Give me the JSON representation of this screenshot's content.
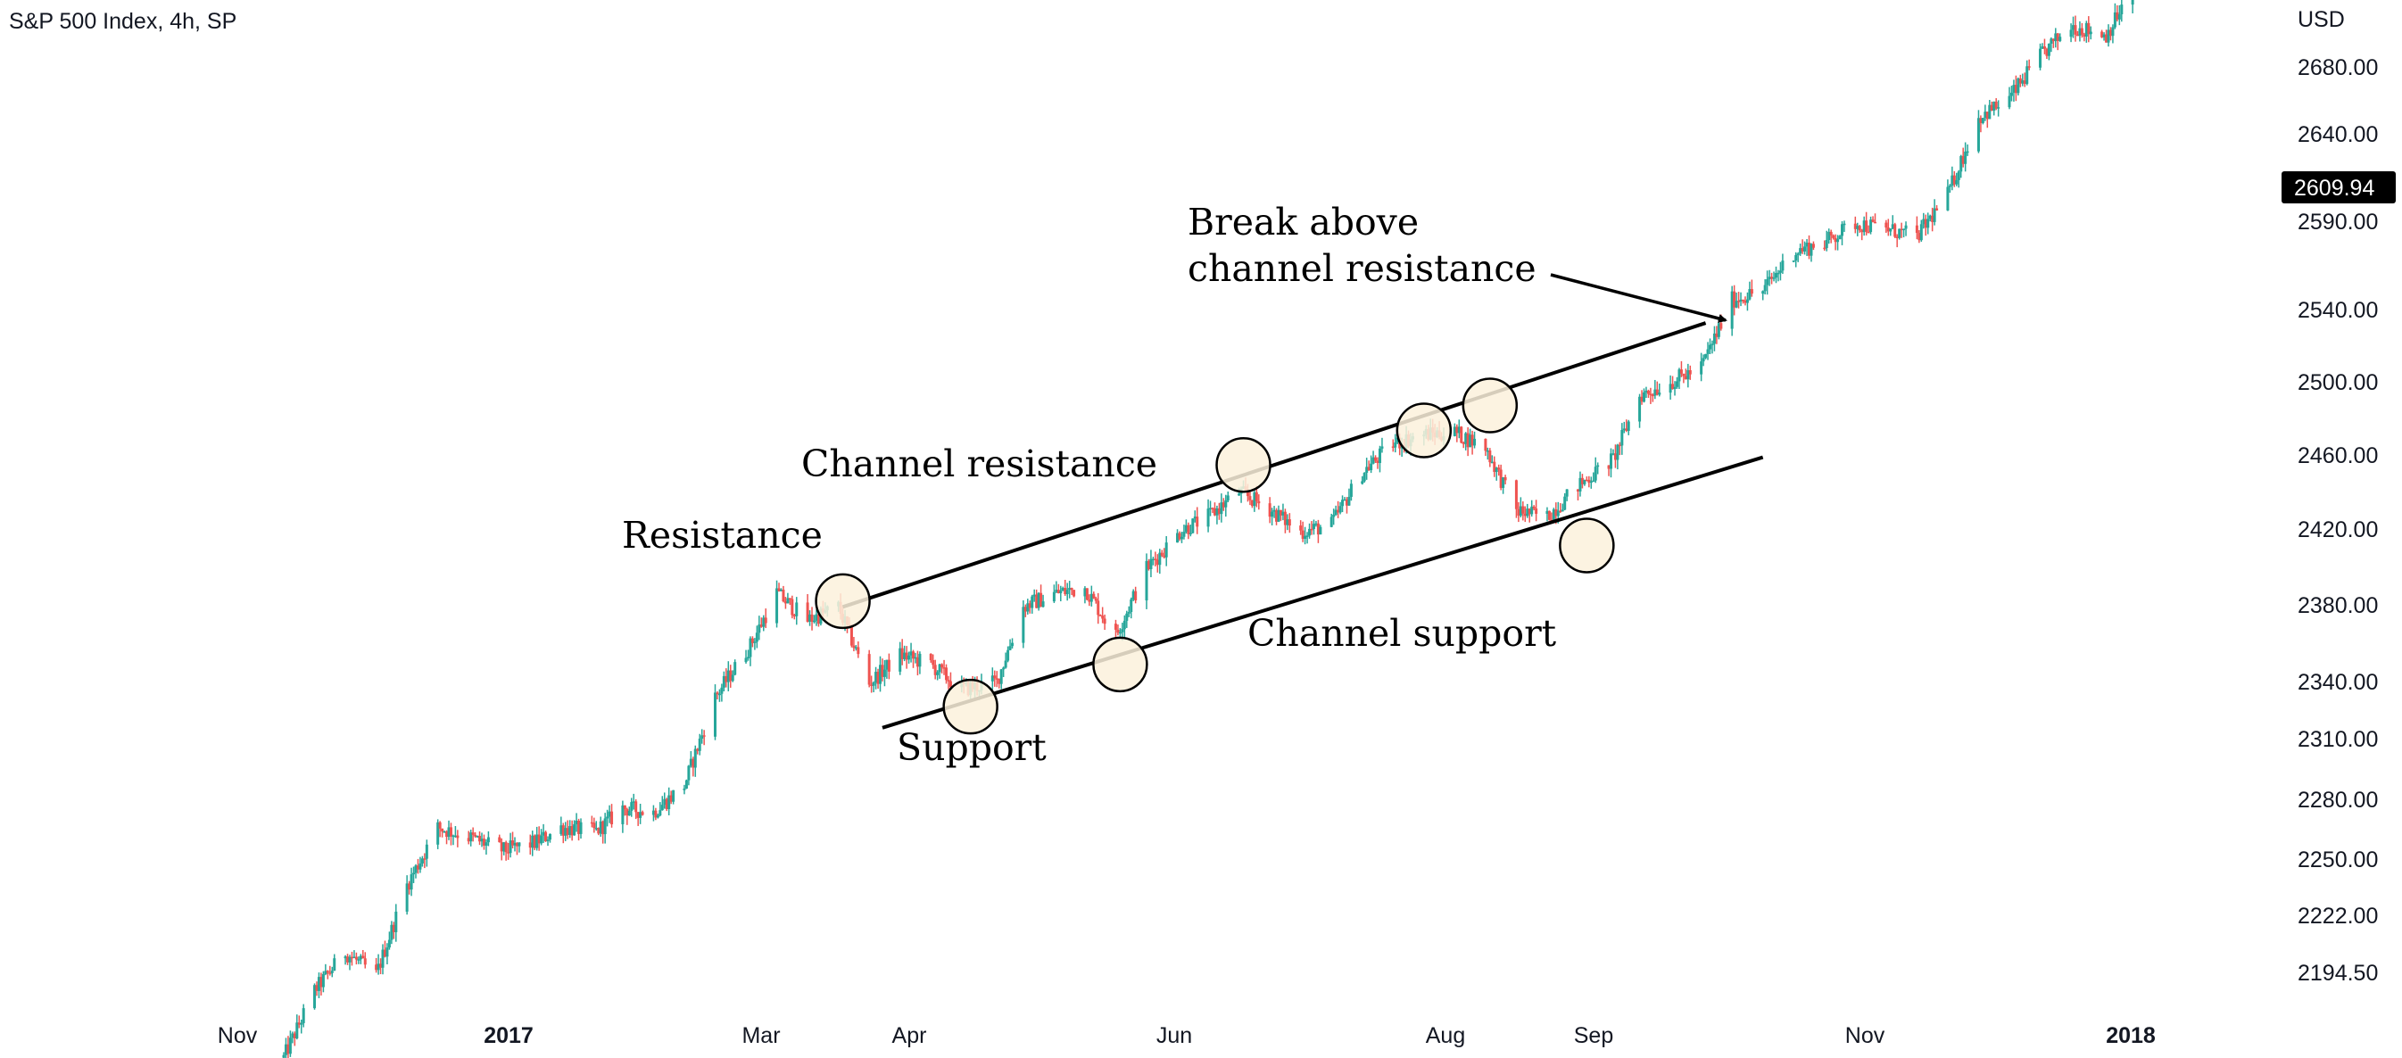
{
  "header": {
    "title": "S&P 500 Index, 4h, SP"
  },
  "colors": {
    "up": "#26a69a",
    "down": "#ef5350",
    "marker_fill": "#fbf1dc",
    "line": "#000000",
    "price_tag_bg": "#000000"
  },
  "chart_data": {
    "type": "candlestick",
    "title": "S&P 500 Index, 4h, SP",
    "currency": "USD",
    "current_price": "2609.94",
    "y_tick_labels": [
      "2680.00",
      "2640.00",
      "2590.00",
      "2540.00",
      "2500.00",
      "2460.00",
      "2420.00",
      "2380.00",
      "2340.00",
      "2310.00",
      "2280.00",
      "2250.00",
      "2222.00",
      "2194.50"
    ],
    "x_tick_labels": [
      {
        "label": "Nov",
        "bold": false
      },
      {
        "label": "2017",
        "bold": true
      },
      {
        "label": "Mar",
        "bold": false
      },
      {
        "label": "Apr",
        "bold": false
      },
      {
        "label": "Jun",
        "bold": false
      },
      {
        "label": "Aug",
        "bold": false
      },
      {
        "label": "Sep",
        "bold": false
      },
      {
        "label": "Nov",
        "bold": false
      },
      {
        "label": "2018",
        "bold": true
      }
    ],
    "price_path": [
      [
        "2016-11-07",
        2150
      ],
      [
        "2016-11-14",
        2185
      ],
      [
        "2016-11-21",
        2205
      ],
      [
        "2016-11-28",
        2193
      ],
      [
        "2016-12-05",
        2240
      ],
      [
        "2016-12-12",
        2270
      ],
      [
        "2016-12-19",
        2265
      ],
      [
        "2016-12-27",
        2258
      ],
      [
        "2017-01-03",
        2262
      ],
      [
        "2017-01-09",
        2270
      ],
      [
        "2017-01-17",
        2268
      ],
      [
        "2017-01-23",
        2280
      ],
      [
        "2017-01-30",
        2278
      ],
      [
        "2017-02-06",
        2292
      ],
      [
        "2017-02-13",
        2338
      ],
      [
        "2017-02-21",
        2365
      ],
      [
        "2017-02-27",
        2392
      ],
      [
        "2017-03-06",
        2378
      ],
      [
        "2017-03-13",
        2385
      ],
      [
        "2017-03-20",
        2345
      ],
      [
        "2017-03-27",
        2360
      ],
      [
        "2017-04-03",
        2355
      ],
      [
        "2017-04-10",
        2342
      ],
      [
        "2017-04-18",
        2346
      ],
      [
        "2017-04-24",
        2385
      ],
      [
        "2017-05-01",
        2392
      ],
      [
        "2017-05-08",
        2395
      ],
      [
        "2017-05-15",
        2370
      ],
      [
        "2017-05-22",
        2405
      ],
      [
        "2017-05-30",
        2425
      ],
      [
        "2017-06-05",
        2432
      ],
      [
        "2017-06-12",
        2445
      ],
      [
        "2017-06-19",
        2436
      ],
      [
        "2017-06-26",
        2424
      ],
      [
        "2017-07-03",
        2428
      ],
      [
        "2017-07-10",
        2455
      ],
      [
        "2017-07-17",
        2470
      ],
      [
        "2017-07-24",
        2475
      ],
      [
        "2017-07-31",
        2476
      ],
      [
        "2017-08-07",
        2468
      ],
      [
        "2017-08-14",
        2435
      ],
      [
        "2017-08-21",
        2432
      ],
      [
        "2017-08-28",
        2448
      ],
      [
        "2017-09-05",
        2462
      ],
      [
        "2017-09-11",
        2495
      ],
      [
        "2017-09-18",
        2502
      ],
      [
        "2017-09-25",
        2510
      ],
      [
        "2017-10-02",
        2545
      ],
      [
        "2017-10-09",
        2550
      ],
      [
        "2017-10-16",
        2570
      ],
      [
        "2017-10-23",
        2575
      ],
      [
        "2017-10-30",
        2585
      ],
      [
        "2017-11-06",
        2582
      ],
      [
        "2017-11-13",
        2578
      ],
      [
        "2017-11-20",
        2600
      ],
      [
        "2017-11-27",
        2640
      ],
      [
        "2017-12-04",
        2650
      ],
      [
        "2017-12-11",
        2672
      ],
      [
        "2017-12-18",
        2688
      ],
      [
        "2017-12-26",
        2683
      ],
      [
        "2018-01-03",
        2715
      ]
    ],
    "channel_resistance": [
      [
        "2017-03-14",
        2385
      ],
      [
        "2017-09-26",
        2533
      ]
    ],
    "channel_support": [
      [
        "2017-03-23",
        2322
      ],
      [
        "2017-10-09",
        2463
      ]
    ],
    "markers": [
      [
        "2017-03-14",
        2388
      ],
      [
        "2017-04-12",
        2333
      ],
      [
        "2017-05-16",
        2355
      ],
      [
        "2017-06-13",
        2459
      ],
      [
        "2017-07-24",
        2477
      ],
      [
        "2017-08-08",
        2490
      ],
      [
        "2017-08-30",
        2417
      ]
    ]
  },
  "annotations": {
    "resistance": "Resistance",
    "channel_resistance": "Channel resistance",
    "support": "Support",
    "channel_support": "Channel support",
    "break_line1": "Break above",
    "break_line2": "channel resistance"
  }
}
